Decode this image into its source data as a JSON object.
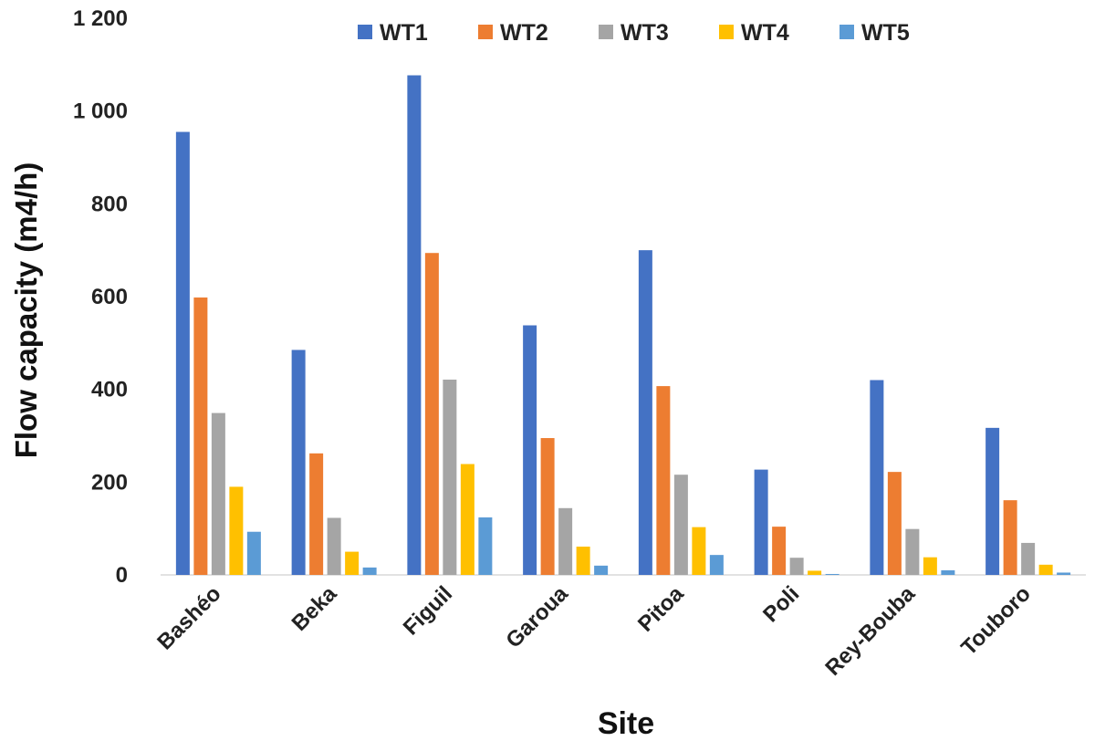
{
  "chart_data": {
    "type": "bar",
    "xlabel": "Site",
    "ylabel": "Flow capacity (m4/h)",
    "ylim": [
      0,
      1200
    ],
    "yticks": [
      0,
      200,
      400,
      600,
      800,
      1000,
      1200
    ],
    "ytick_labels": [
      "0",
      "200",
      "400",
      "600",
      "800",
      "1 000",
      "1 200"
    ],
    "grid": false,
    "legend_position": "top",
    "categories": [
      "Bashéo",
      "Beka",
      "Figuil",
      "Garoua",
      "Pitoa",
      "Poli",
      "Rey-Bouba",
      "Touboro"
    ],
    "series": [
      {
        "name": "WT1",
        "color": "#4472C4",
        "values": [
          955,
          485,
          1077,
          538,
          700,
          227,
          420,
          317
        ]
      },
      {
        "name": "WT2",
        "color": "#ED7D31",
        "values": [
          598,
          262,
          694,
          295,
          407,
          104,
          222,
          161
        ]
      },
      {
        "name": "WT3",
        "color": "#A5A5A5",
        "values": [
          349,
          123,
          421,
          144,
          216,
          37,
          99,
          69
        ]
      },
      {
        "name": "WT4",
        "color": "#FFC000",
        "values": [
          190,
          50,
          239,
          61,
          103,
          9,
          38,
          22
        ]
      },
      {
        "name": "WT5",
        "color": "#5B9BD5",
        "values": [
          93,
          16,
          124,
          20,
          43,
          2,
          10,
          5
        ]
      }
    ]
  }
}
